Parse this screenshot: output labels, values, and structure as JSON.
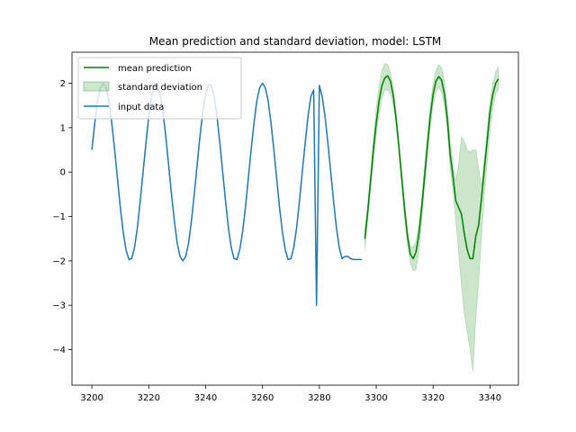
{
  "chart_data": {
    "type": "line",
    "title": "Mean prediction and standard deviation, model: LSTM",
    "xlabel": "",
    "ylabel": "",
    "xlim": [
      3193,
      3350
    ],
    "ylim": [
      -4.8,
      2.7
    ],
    "x_ticks": [
      3200,
      3220,
      3240,
      3260,
      3280,
      3300,
      3320,
      3340
    ],
    "y_ticks": [
      -4,
      -3,
      -2,
      -1,
      0,
      1,
      2
    ],
    "grid": false,
    "legend": {
      "placement": "top-left",
      "entries": [
        "mean prediction",
        "standard deviation",
        "input data"
      ]
    },
    "colors": {
      "mean_prediction": "#008000",
      "standard_deviation": "#008000",
      "input_data": "#1f77b4"
    },
    "series": [
      {
        "name": "input data",
        "x": [
          3200,
          3201,
          3202,
          3203,
          3204,
          3205,
          3206,
          3207,
          3208,
          3209,
          3210,
          3211,
          3212,
          3213,
          3214,
          3215,
          3216,
          3217,
          3218,
          3219,
          3220,
          3221,
          3222,
          3223,
          3224,
          3225,
          3226,
          3227,
          3228,
          3229,
          3230,
          3231,
          3232,
          3233,
          3234,
          3235,
          3236,
          3237,
          3238,
          3239,
          3240,
          3241,
          3242,
          3243,
          3244,
          3245,
          3246,
          3247,
          3248,
          3249,
          3250,
          3251,
          3252,
          3253,
          3254,
          3255,
          3256,
          3257,
          3258,
          3259,
          3260,
          3261,
          3262,
          3263,
          3264,
          3265,
          3266,
          3267,
          3268,
          3269,
          3270,
          3271,
          3272,
          3273,
          3274,
          3275,
          3276,
          3277,
          3278,
          3279,
          3280,
          3281,
          3282,
          3283,
          3284,
          3285,
          3286,
          3287,
          3288,
          3289,
          3290,
          3291,
          3292,
          3293,
          3294,
          3295
        ],
        "y": [
          0.5,
          1.1,
          1.6,
          1.9,
          2.0,
          1.9,
          1.6,
          1.1,
          0.5,
          -0.15,
          -0.8,
          -1.35,
          -1.75,
          -1.97,
          -1.95,
          -1.7,
          -1.25,
          -0.65,
          0.0,
          0.65,
          1.25,
          1.7,
          1.95,
          1.97,
          1.75,
          1.35,
          0.8,
          0.15,
          -0.5,
          -1.1,
          -1.6,
          -1.9,
          -2.0,
          -1.9,
          -1.6,
          -1.1,
          -0.5,
          0.15,
          0.8,
          1.35,
          1.75,
          1.97,
          1.95,
          1.7,
          1.25,
          0.65,
          0.0,
          -0.65,
          -1.25,
          -1.7,
          -1.95,
          -1.97,
          -1.75,
          -1.35,
          -0.8,
          -0.15,
          0.5,
          1.1,
          1.6,
          1.9,
          2.0,
          1.9,
          1.6,
          1.1,
          0.5,
          -0.15,
          -0.8,
          -1.35,
          -1.75,
          -1.97,
          -1.95,
          -1.7,
          -1.25,
          -0.65,
          0.0,
          0.65,
          1.25,
          1.7,
          1.85,
          -3.0,
          1.95,
          1.7,
          1.25,
          0.65,
          0.0,
          -0.65,
          -1.25,
          -1.7,
          -1.95,
          -1.9,
          -1.9,
          -1.95,
          -1.97,
          -1.97,
          -1.97,
          -1.97
        ],
        "x_override": [
          3200,
          3201,
          3202,
          3203,
          3204,
          3205,
          3206,
          3207,
          3208,
          3209,
          3210,
          3211,
          3212,
          3213,
          3214,
          3215,
          3216,
          3217,
          3218,
          3219,
          3220,
          3221,
          3222,
          3223,
          3224,
          3225,
          3226,
          3227,
          3228,
          3229,
          3230,
          3231,
          3232,
          3233,
          3234,
          3235,
          3236,
          3237,
          3238,
          3239,
          3240,
          3241,
          3242,
          3243,
          3244,
          3245,
          3246,
          3247,
          3248,
          3249,
          3250,
          3251,
          3252,
          3253,
          3254,
          3255,
          3256,
          3257,
          3258,
          3259,
          3260,
          3261,
          3262,
          3263,
          3264,
          3265,
          3266,
          3267,
          3268,
          3269,
          3270,
          3271,
          3272,
          3273,
          3274,
          3275,
          3276,
          3277,
          3278,
          3279,
          3280,
          3281,
          3282,
          3283,
          3284,
          3285,
          3286,
          3287,
          3288,
          3289,
          3290,
          3291,
          3292,
          3293,
          3294,
          3295
        ]
      },
      {
        "name": "mean prediction",
        "x": [
          3296,
          3297,
          3298,
          3299,
          3300,
          3301,
          3302,
          3303,
          3304,
          3305,
          3306,
          3307,
          3308,
          3309,
          3310,
          3311,
          3312,
          3313,
          3314,
          3315,
          3316,
          3317,
          3318,
          3319,
          3320,
          3321,
          3322,
          3323,
          3324,
          3325,
          3326,
          3327,
          3328,
          3329,
          3330,
          3331,
          3332,
          3333,
          3334,
          3335,
          3336,
          3337,
          3338,
          3339,
          3340,
          3341,
          3342,
          3343
        ],
        "y": [
          -1.5,
          -0.9,
          -0.2,
          0.5,
          1.1,
          1.6,
          1.95,
          2.12,
          2.17,
          2.05,
          1.72,
          1.2,
          0.55,
          -0.15,
          -0.85,
          -1.45,
          -1.85,
          -1.95,
          -1.8,
          -1.4,
          -0.8,
          -0.1,
          0.6,
          1.25,
          1.75,
          2.05,
          2.15,
          2.07,
          1.75,
          1.2,
          0.4,
          -0.1,
          -0.65,
          -0.8,
          -0.95,
          -1.4,
          -1.75,
          -1.95,
          -1.95,
          -1.45,
          -1.2,
          -0.6,
          0.05,
          0.7,
          1.35,
          1.75,
          2.0,
          2.1
        ]
      },
      {
        "name": "standard deviation",
        "x": [
          3296,
          3297,
          3298,
          3299,
          3300,
          3301,
          3302,
          3303,
          3304,
          3305,
          3306,
          3307,
          3308,
          3309,
          3310,
          3311,
          3312,
          3313,
          3314,
          3315,
          3316,
          3317,
          3318,
          3319,
          3320,
          3321,
          3322,
          3323,
          3324,
          3325,
          3326,
          3327,
          3328,
          3329,
          3330,
          3331,
          3332,
          3333,
          3334,
          3335,
          3336,
          3337,
          3338,
          3339,
          3340,
          3341,
          3342,
          3343
        ],
        "upper": [
          -1.3,
          -0.7,
          0.0,
          0.75,
          1.45,
          1.95,
          2.3,
          2.45,
          2.42,
          2.25,
          1.9,
          1.35,
          0.7,
          0.0,
          -0.7,
          -1.3,
          -1.65,
          -1.7,
          -1.55,
          -1.15,
          -0.55,
          0.15,
          0.85,
          1.5,
          2.0,
          2.3,
          2.42,
          2.35,
          2.05,
          1.5,
          0.7,
          0.2,
          -0.2,
          0.2,
          0.8,
          0.7,
          0.5,
          0.45,
          0.5,
          0.5,
          0.1,
          -0.3,
          0.3,
          0.95,
          1.6,
          2.0,
          2.25,
          2.38
        ],
        "lower": [
          -1.75,
          -1.1,
          -0.4,
          0.25,
          0.85,
          1.3,
          1.65,
          1.83,
          1.85,
          1.75,
          1.5,
          1.05,
          0.4,
          -0.35,
          -1.05,
          -1.65,
          -2.05,
          -2.22,
          -2.2,
          -1.8,
          -1.1,
          -0.35,
          0.35,
          1.0,
          1.5,
          1.8,
          1.9,
          1.8,
          1.5,
          0.95,
          0.1,
          -0.45,
          -1.1,
          -1.8,
          -2.6,
          -3.2,
          -3.6,
          -4.0,
          -4.5,
          -3.3,
          -2.5,
          -1.5,
          -0.5,
          0.2,
          0.9,
          1.45,
          1.75,
          1.85
        ]
      }
    ]
  }
}
